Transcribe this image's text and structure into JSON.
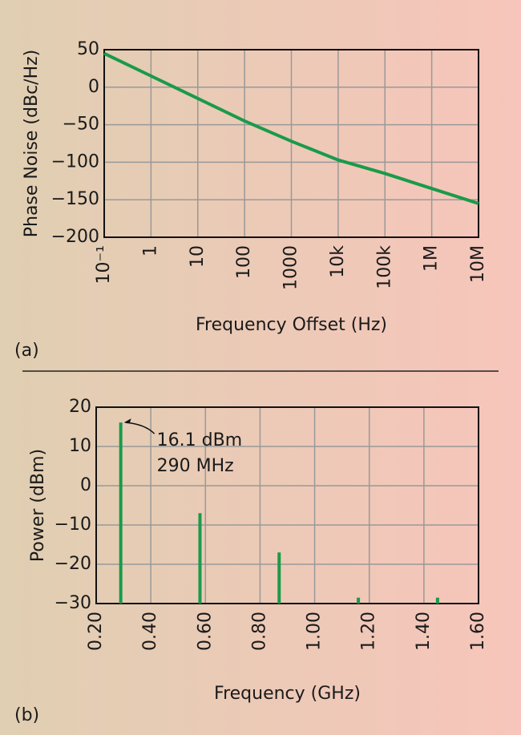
{
  "chart_data": [
    {
      "type": "line",
      "panel_label": "(a)",
      "xlabel": "Frequency Offset (Hz)",
      "ylabel": "Phase Noise (dBc/Hz)",
      "xscale": "log",
      "grid": true,
      "x": [
        0.1,
        1,
        10,
        100,
        1000,
        10000,
        100000,
        1000000,
        10000000
      ],
      "series": [
        {
          "color": "#1a9a4a",
          "values": [
            45,
            15,
            -15,
            -45,
            -72,
            -97,
            -115,
            -135,
            -155
          ]
        }
      ],
      "xlim": [
        0.1,
        10000000
      ],
      "xticks": [
        {
          "value": 0.1,
          "label": "10⁻¹"
        },
        1,
        10,
        100,
        1000,
        {
          "value": 10000,
          "label": "10k"
        },
        {
          "value": 100000,
          "label": "100k"
        },
        {
          "value": 1000000,
          "label": "1M"
        },
        {
          "value": 10000000,
          "label": "10M"
        }
      ],
      "ylim": [
        -200,
        50
      ],
      "yticks": [
        50,
        0,
        {
          "value": -50,
          "label": "−50"
        },
        {
          "value": -100,
          "label": "−100"
        },
        {
          "value": -150,
          "label": "−150"
        },
        {
          "value": -200,
          "label": "−200"
        }
      ]
    },
    {
      "type": "stem",
      "panel_label": "(b)",
      "xlabel": "Frequency (GHz)",
      "ylabel": "Power (dBm)",
      "grid": true,
      "x": [
        0.29,
        0.58,
        0.87,
        1.16,
        1.45
      ],
      "series": [
        {
          "color": "#1a9a4a",
          "values": [
            16.1,
            -7,
            -17,
            -28.5,
            -28.5
          ]
        }
      ],
      "annotation": [
        "16.1 dBm",
        "290 MHz"
      ],
      "xlim": [
        0.2,
        1.6
      ],
      "xticks": [
        {
          "value": 0.2,
          "label": "0.20"
        },
        {
          "value": 0.4,
          "label": "0.40"
        },
        {
          "value": 0.6,
          "label": "0.60"
        },
        {
          "value": 0.8,
          "label": "0.80"
        },
        {
          "value": 1.0,
          "label": "1.00"
        },
        {
          "value": 1.2,
          "label": "1.20"
        },
        {
          "value": 1.4,
          "label": "1.40"
        },
        {
          "value": 1.6,
          "label": "1.60"
        }
      ],
      "ylim": [
        -30,
        20
      ],
      "yticks": [
        20,
        10,
        0,
        {
          "value": -10,
          "label": "−10"
        },
        {
          "value": -20,
          "label": "−20"
        },
        {
          "value": -30,
          "label": "−30"
        }
      ]
    }
  ]
}
